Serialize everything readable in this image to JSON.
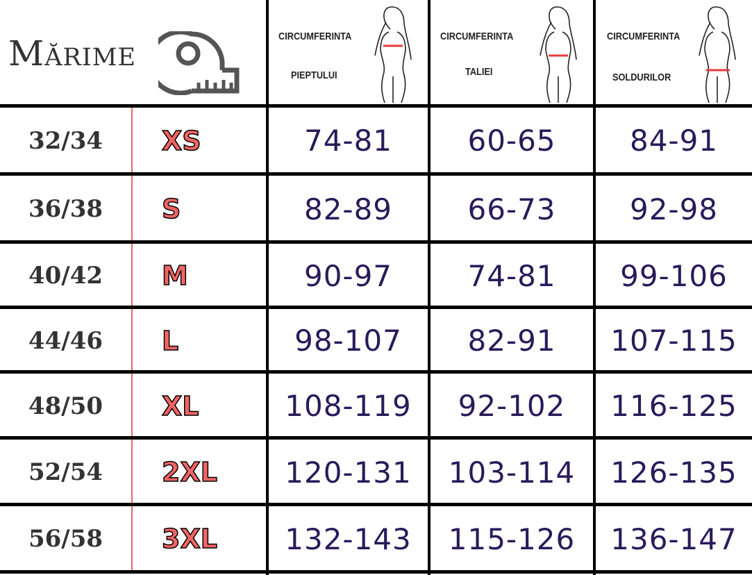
{
  "header": {
    "title": "Mărime",
    "icon": "measuring-tape-icon",
    "columns": [
      {
        "line1": "CIRCUMFERINTA",
        "line2": "PIEPTULUI",
        "icon": "woman-bust-icon"
      },
      {
        "line1": "CIRCUMFERINTA",
        "line2": "TALIEI",
        "icon": "woman-waist-icon"
      },
      {
        "line1": "CIRCUMFERINTA",
        "line2": "SOLDURILOR",
        "icon": "woman-hips-icon"
      }
    ]
  },
  "colors": {
    "numbers": "#2a1a5a",
    "size_letter": "#f06464",
    "divider_red": "#f06464",
    "grid": "#000000"
  },
  "rows": [
    {
      "eu": "32/34",
      "size": "XS",
      "chest": "74-81",
      "waist": "60-65",
      "hips": "84-91"
    },
    {
      "eu": "36/38",
      "size": "S",
      "chest": "82-89",
      "waist": "66-73",
      "hips": "92-98"
    },
    {
      "eu": "40/42",
      "size": "M",
      "chest": "90-97",
      "waist": "74-81",
      "hips": "99-106"
    },
    {
      "eu": "44/46",
      "size": "L",
      "chest": "98-107",
      "waist": "82-91",
      "hips": "107-115"
    },
    {
      "eu": "48/50",
      "size": "XL",
      "chest": "108-119",
      "waist": "92-102",
      "hips": "116-125"
    },
    {
      "eu": "52/54",
      "size": "2XL",
      "chest": "120-131",
      "waist": "103-114",
      "hips": "126-135"
    },
    {
      "eu": "56/58",
      "size": "3XL",
      "chest": "132-143",
      "waist": "115-126",
      "hips": "136-147"
    }
  ]
}
